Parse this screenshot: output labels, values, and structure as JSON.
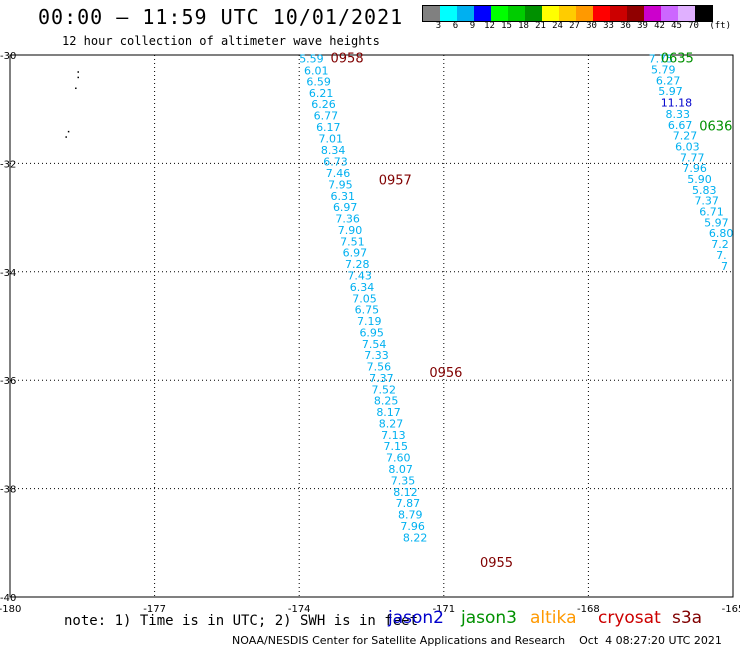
{
  "header": {
    "title": "00:00 – 11:59 UTC 10/01/2021",
    "subtitle": "12 hour collection of altimeter wave heights"
  },
  "colorbar": {
    "colors": [
      "#808080",
      "#00ffff",
      "#00b0f0",
      "#0000ff",
      "#00ff00",
      "#00cc00",
      "#009000",
      "#ffff00",
      "#ffcc00",
      "#ff9900",
      "#ff0000",
      "#cc0000",
      "#900000",
      "#cc00cc",
      "#cc66ff",
      "#e0b0ff",
      "#000000"
    ],
    "labels": [
      "3",
      "6",
      "9",
      "12",
      "15",
      "18",
      "21",
      "24",
      "27",
      "30",
      "33",
      "36",
      "39",
      "42",
      "45",
      "70"
    ],
    "unit": "(ft)"
  },
  "footer": {
    "note": "note: 1) Time is in UTC; 2) SWH is in feet",
    "satellites": [
      {
        "name": "jason2",
        "color": "#0000cc"
      },
      {
        "name": "jason3",
        "color": "#009000"
      },
      {
        "name": "altika",
        "color": "#ff9900"
      },
      {
        "name": "cryosat",
        "color": "#cc0000"
      },
      {
        "name": "s3a",
        "color": "#800000"
      }
    ],
    "credit": "NOAA/NESDIS Center for Satellite Applications and Research    Oct  4 08:27:20 UTC 2021"
  },
  "chart_data": {
    "type": "scatter",
    "title": "00:00 – 11:59 UTC 10/01/2021",
    "subtitle": "12 hour collection of altimeter wave heights",
    "xlabel": "",
    "ylabel": "",
    "xlim": [
      -180,
      -165
    ],
    "ylim": [
      -40,
      -30
    ],
    "x_ticks": [
      "-180",
      "-177",
      "-174",
      "-171",
      "-168",
      "-165"
    ],
    "y_ticks": [
      "-30",
      "-32",
      "-34",
      "-36",
      "-38",
      "-40"
    ],
    "grid": true,
    "colors": {
      "pass_low_values": "#00b0f0",
      "pass_mid_values": "#0000cc",
      "times_s3a": "#800000",
      "times_jason3": "#009000"
    },
    "time_labels": [
      {
        "text": "0958",
        "lon": -173.35,
        "lat": -30.05,
        "color": "#800000"
      },
      {
        "text": "0957",
        "lon": -172.35,
        "lat": -32.3,
        "color": "#800000"
      },
      {
        "text": "0956",
        "lon": -171.3,
        "lat": -35.85,
        "color": "#800000"
      },
      {
        "text": "0955",
        "lon": -170.25,
        "lat": -39.35,
        "color": "#800000"
      },
      {
        "text": "0635",
        "lon": -166.5,
        "lat": -30.05,
        "color": "#009000"
      },
      {
        "text": "0636",
        "lon": -165.7,
        "lat": -31.3,
        "color": "#009000"
      }
    ],
    "series": [
      {
        "name": "s3a",
        "color": "#00b0f0",
        "points": [
          {
            "lon": -174.0,
            "lat": -30.05,
            "swh": "5.59"
          },
          {
            "lon": -173.9,
            "lat": -30.27,
            "swh": "6.01"
          },
          {
            "lon": -173.85,
            "lat": -30.47,
            "swh": "6.59"
          },
          {
            "lon": -173.8,
            "lat": -30.68,
            "swh": "6.21"
          },
          {
            "lon": -173.75,
            "lat": -30.89,
            "swh": "6.26"
          },
          {
            "lon": -173.7,
            "lat": -31.1,
            "swh": "6.77"
          },
          {
            "lon": -173.65,
            "lat": -31.31,
            "swh": "6.17"
          },
          {
            "lon": -173.6,
            "lat": -31.52,
            "swh": "7.01"
          },
          {
            "lon": -173.55,
            "lat": -31.73,
            "swh": "8.34"
          },
          {
            "lon": -173.5,
            "lat": -31.95,
            "swh": "6.73"
          },
          {
            "lon": -173.45,
            "lat": -32.16,
            "swh": "7.46"
          },
          {
            "lon": -173.4,
            "lat": -32.37,
            "swh": "7.95"
          },
          {
            "lon": -173.35,
            "lat": -32.58,
            "swh": "6.31"
          },
          {
            "lon": -173.3,
            "lat": -32.79,
            "swh": "6.97"
          },
          {
            "lon": -173.25,
            "lat": -33.0,
            "swh": "7.36"
          },
          {
            "lon": -173.2,
            "lat": -33.21,
            "swh": "7.90"
          },
          {
            "lon": -173.15,
            "lat": -33.42,
            "swh": "7.51"
          },
          {
            "lon": -173.1,
            "lat": -33.63,
            "swh": "6.97"
          },
          {
            "lon": -173.05,
            "lat": -33.84,
            "swh": "7.28"
          },
          {
            "lon": -173.0,
            "lat": -34.05,
            "swh": "7.43"
          },
          {
            "lon": -172.95,
            "lat": -34.26,
            "swh": "6.34"
          },
          {
            "lon": -172.9,
            "lat": -34.47,
            "swh": "7.05"
          },
          {
            "lon": -172.85,
            "lat": -34.68,
            "swh": "6.75"
          },
          {
            "lon": -172.8,
            "lat": -34.89,
            "swh": "7.19"
          },
          {
            "lon": -172.75,
            "lat": -35.1,
            "swh": "6.95"
          },
          {
            "lon": -172.7,
            "lat": -35.31,
            "swh": "7.54"
          },
          {
            "lon": -172.65,
            "lat": -35.52,
            "swh": "7.33"
          },
          {
            "lon": -172.6,
            "lat": -35.73,
            "swh": "7.56"
          },
          {
            "lon": -172.55,
            "lat": -35.94,
            "swh": "7.37"
          },
          {
            "lon": -172.5,
            "lat": -36.15,
            "swh": "7.52"
          },
          {
            "lon": -172.45,
            "lat": -36.36,
            "swh": "8.25"
          },
          {
            "lon": -172.4,
            "lat": -36.57,
            "swh": "8.17"
          },
          {
            "lon": -172.35,
            "lat": -36.78,
            "swh": "8.27"
          },
          {
            "lon": -172.3,
            "lat": -36.99,
            "swh": "7.13"
          },
          {
            "lon": -172.25,
            "lat": -37.2,
            "swh": "7.15"
          },
          {
            "lon": -172.2,
            "lat": -37.41,
            "swh": "7.60"
          },
          {
            "lon": -172.15,
            "lat": -37.62,
            "swh": "8.07"
          },
          {
            "lon": -172.1,
            "lat": -37.83,
            "swh": "7.35"
          },
          {
            "lon": -172.05,
            "lat": -38.04,
            "swh": "8.12"
          },
          {
            "lon": -172.0,
            "lat": -38.25,
            "swh": "7.87"
          },
          {
            "lon": -171.95,
            "lat": -38.46,
            "swh": "8.79"
          },
          {
            "lon": -171.9,
            "lat": -38.67,
            "swh": "7.96"
          },
          {
            "lon": -171.85,
            "lat": -38.88,
            "swh": "8.22"
          }
        ]
      },
      {
        "name": "jason3",
        "color": "#00b0f0",
        "points": [
          {
            "lon": -166.75,
            "lat": -30.05,
            "swh": "7.75"
          },
          {
            "lon": -166.7,
            "lat": -30.25,
            "swh": "5.79"
          },
          {
            "lon": -166.6,
            "lat": -30.45,
            "swh": "6.27"
          },
          {
            "lon": -166.55,
            "lat": -30.65,
            "swh": "5.97"
          },
          {
            "lon": -166.5,
            "lat": -30.86,
            "swh": "11.18",
            "color": "#0000cc"
          },
          {
            "lon": -166.4,
            "lat": -31.07,
            "swh": "8.33"
          },
          {
            "lon": -166.35,
            "lat": -31.27,
            "swh": "6.67"
          },
          {
            "lon": -166.25,
            "lat": -31.47,
            "swh": "7.27"
          },
          {
            "lon": -166.2,
            "lat": -31.67,
            "swh": "6.03"
          },
          {
            "lon": -166.1,
            "lat": -31.87,
            "swh": "7.77"
          },
          {
            "lon": -166.05,
            "lat": -32.07,
            "swh": "7.96"
          },
          {
            "lon": -165.95,
            "lat": -32.27,
            "swh": "5.90"
          },
          {
            "lon": -165.85,
            "lat": -32.47,
            "swh": "5.83"
          },
          {
            "lon": -165.8,
            "lat": -32.67,
            "swh": "7.37"
          },
          {
            "lon": -165.7,
            "lat": -32.87,
            "swh": "6.71"
          },
          {
            "lon": -165.6,
            "lat": -33.07,
            "swh": "5.97"
          },
          {
            "lon": -165.5,
            "lat": -33.27,
            "swh": "6.80"
          },
          {
            "lon": -165.45,
            "lat": -33.47,
            "swh": "7.2"
          },
          {
            "lon": -165.35,
            "lat": -33.67,
            "swh": "7."
          },
          {
            "lon": -165.25,
            "lat": -33.87,
            "swh": "7"
          }
        ]
      }
    ],
    "land_dots": [
      {
        "lon": -178.6,
        "lat": -30.3
      },
      {
        "lon": -178.6,
        "lat": -30.4
      },
      {
        "lon": -178.65,
        "lat": -30.6
      },
      {
        "lon": -178.8,
        "lat": -31.4
      },
      {
        "lon": -178.85,
        "lat": -31.5
      }
    ]
  }
}
